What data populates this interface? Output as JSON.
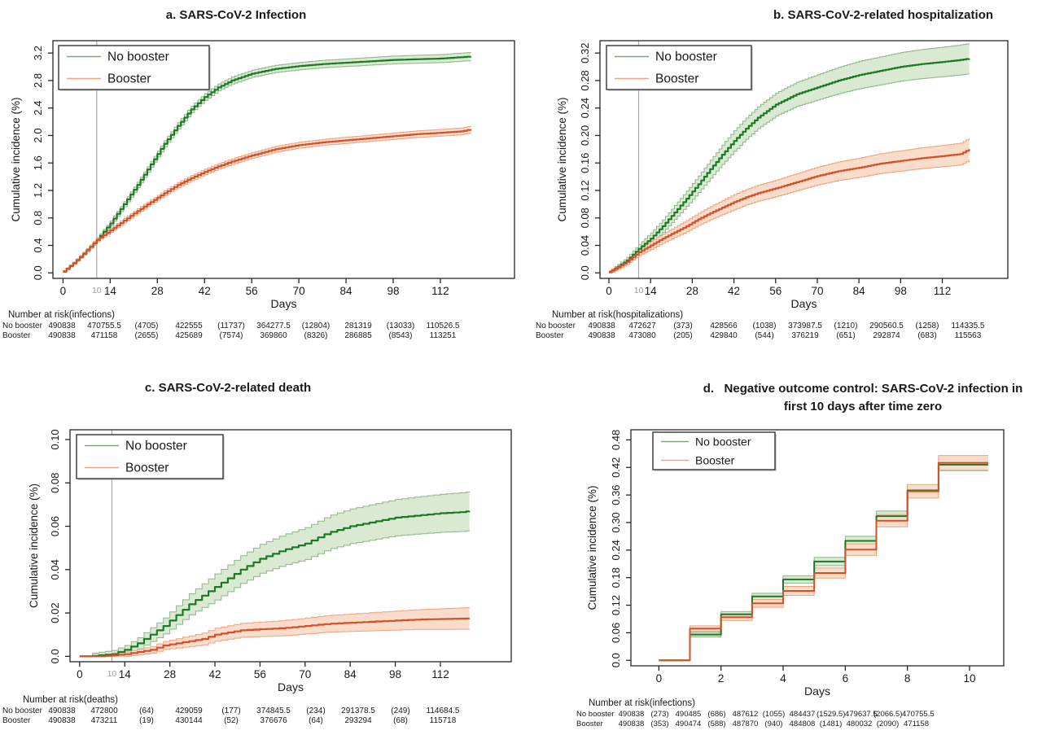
{
  "figure_legend": {
    "no_booster": "No booster",
    "booster": "Booster"
  },
  "colors": {
    "green_line": "#1d7a24",
    "green_band": "#d9e9d2",
    "green_edge": "#8fb58a",
    "green_legend": "#7ea87c",
    "orange_line": "#d2512a",
    "orange_band": "#f9dcca",
    "orange_edge": "#eca380",
    "orange_legend": "#f0a584",
    "ref_line": "#a9a9a9",
    "ref_label": "#9a9a9a",
    "axis": "#262626",
    "text": "#1a1a1a"
  },
  "chart_data": [
    {
      "id": "a",
      "type": "line",
      "title": "a. SARS-CoV-2 Infection",
      "title_line2": "",
      "xlabel": "Days",
      "ylabel": "Cumulative incidence (%)",
      "xlim": [
        -3,
        134
      ],
      "ylim": [
        -0.08,
        3.38
      ],
      "xticks": [
        0,
        14,
        28,
        42,
        56,
        70,
        84,
        98,
        112
      ],
      "yticks": [
        0,
        0.4,
        0.8,
        1.2,
        1.6,
        2.0,
        2.4,
        2.8,
        3.2
      ],
      "ytick_labels": [
        "0.0",
        "0.4",
        "0.8",
        "1.2",
        "1.6",
        "2.0",
        "2.4",
        "2.8",
        "3.2"
      ],
      "ref_x": 10,
      "ref_label": "10",
      "step_dx": 1,
      "legend_labels": [
        "No booster",
        "Booster"
      ],
      "legend_position": "top-left",
      "series": [
        {
          "name": "No booster",
          "color_key": "green",
          "x": [
            0,
            3,
            6,
            10,
            14,
            18,
            22,
            26,
            30,
            34,
            38,
            42,
            46,
            50,
            56,
            63,
            70,
            77,
            84,
            91,
            98,
            105,
            112,
            118,
            121
          ],
          "y": [
            0.02,
            0.14,
            0.28,
            0.48,
            0.72,
            1.0,
            1.28,
            1.58,
            1.88,
            2.14,
            2.38,
            2.56,
            2.7,
            2.8,
            2.9,
            2.97,
            3.01,
            3.04,
            3.06,
            3.08,
            3.1,
            3.11,
            3.12,
            3.14,
            3.15
          ],
          "band": {
            "x": [
              0,
              14,
              42,
              84,
              121
            ],
            "w": [
              0.012,
              0.035,
              0.05,
              0.055,
              0.06
            ]
          }
        },
        {
          "name": "Booster",
          "color_key": "orange",
          "x": [
            0,
            3,
            6,
            10,
            14,
            18,
            22,
            26,
            30,
            34,
            38,
            42,
            46,
            50,
            56,
            63,
            70,
            77,
            84,
            91,
            98,
            105,
            112,
            118,
            121
          ],
          "y": [
            0.02,
            0.14,
            0.28,
            0.48,
            0.62,
            0.76,
            0.9,
            1.03,
            1.16,
            1.28,
            1.38,
            1.47,
            1.55,
            1.62,
            1.71,
            1.8,
            1.86,
            1.9,
            1.93,
            1.96,
            1.99,
            2.02,
            2.04,
            2.06,
            2.09
          ],
          "band": {
            "x": [
              0,
              14,
              42,
              84,
              121
            ],
            "w": [
              0.012,
              0.03,
              0.04,
              0.045,
              0.05
            ]
          }
        }
      ],
      "risk": {
        "label": "Number at risk(infections)",
        "rows": [
          {
            "name": "No booster",
            "values": [
              "490838",
              "470755.5",
              "(4705)",
              "422555",
              "(11737)",
              "364277.5",
              "(12804)",
              "281319",
              "(13033)",
              "110526.5"
            ]
          },
          {
            "name": "Booster",
            "values": [
              "490838",
              "471158",
              "(2655)",
              "425689",
              "(7574)",
              "369860",
              "(8326)",
              "286885",
              "(8543)",
              "113251"
            ]
          }
        ]
      }
    },
    {
      "id": "b",
      "type": "line",
      "title": "b. SARS-CoV-2-related hospitalization",
      "title_line2": "",
      "xlabel": "Days",
      "ylabel": "Cumulative incidence (%)",
      "xlim": [
        -3,
        134
      ],
      "ylim": [
        -0.008,
        0.338
      ],
      "xticks": [
        0,
        14,
        28,
        42,
        56,
        70,
        84,
        98,
        112
      ],
      "yticks": [
        0,
        0.04,
        0.08,
        0.12,
        0.16,
        0.2,
        0.24,
        0.28,
        0.32
      ],
      "ytick_labels": [
        "0.0",
        "0.04",
        "0.08",
        "0.12",
        "0.16",
        "0.20",
        "0.24",
        "0.28",
        "0.32"
      ],
      "ref_x": 10,
      "ref_label": "10",
      "step_dx": 1,
      "legend_labels": [
        "No booster",
        "Booster"
      ],
      "legend_position": "top-left",
      "series": [
        {
          "name": "No booster",
          "color_key": "green",
          "x": [
            0,
            3,
            6,
            10,
            14,
            18,
            22,
            26,
            30,
            34,
            38,
            42,
            46,
            50,
            56,
            63,
            70,
            77,
            84,
            91,
            98,
            105,
            112,
            118,
            121
          ],
          "y": [
            0.001,
            0.009,
            0.018,
            0.035,
            0.05,
            0.068,
            0.088,
            0.108,
            0.129,
            0.151,
            0.172,
            0.192,
            0.21,
            0.226,
            0.245,
            0.26,
            0.27,
            0.28,
            0.288,
            0.294,
            0.3,
            0.304,
            0.307,
            0.31,
            0.312
          ],
          "band": {
            "x": [
              0,
              14,
              42,
              84,
              121
            ],
            "w": [
              0.002,
              0.008,
              0.015,
              0.02,
              0.022
            ]
          }
        },
        {
          "name": "Booster",
          "color_key": "orange",
          "x": [
            0,
            3,
            6,
            10,
            14,
            18,
            22,
            26,
            30,
            34,
            38,
            42,
            46,
            50,
            56,
            63,
            70,
            77,
            84,
            91,
            98,
            105,
            112,
            118,
            121
          ],
          "y": [
            0.001,
            0.008,
            0.016,
            0.03,
            0.04,
            0.05,
            0.059,
            0.068,
            0.078,
            0.087,
            0.095,
            0.103,
            0.11,
            0.116,
            0.123,
            0.132,
            0.141,
            0.148,
            0.153,
            0.159,
            0.163,
            0.167,
            0.17,
            0.173,
            0.18
          ],
          "band": {
            "x": [
              0,
              14,
              42,
              84,
              121
            ],
            "w": [
              0.002,
              0.006,
              0.011,
              0.014,
              0.016
            ]
          }
        }
      ],
      "risk": {
        "label": "Number at risk(hospitalizations)",
        "rows": [
          {
            "name": "No booster",
            "values": [
              "490838",
              "472627",
              "(373)",
              "428566",
              "(1038)",
              "373987.5",
              "(1210)",
              "290560.5",
              "(1258)",
              "114335.5"
            ]
          },
          {
            "name": "Booster",
            "values": [
              "490838",
              "473080",
              "(205)",
              "429840",
              "(544)",
              "376219",
              "(651)",
              "292874",
              "(683)",
              "115563"
            ]
          }
        ]
      }
    },
    {
      "id": "c",
      "type": "line",
      "title": "c. SARS-CoV-2-related death",
      "title_line2": "",
      "xlabel": "Days",
      "ylabel": "Cumulative incidence (%)",
      "xlim": [
        -3,
        134
      ],
      "ylim": [
        -0.0025,
        0.1045
      ],
      "xticks": [
        0,
        14,
        28,
        42,
        56,
        70,
        84,
        98,
        112
      ],
      "yticks": [
        0,
        0.02,
        0.04,
        0.06,
        0.08,
        0.1
      ],
      "ytick_labels": [
        "0.0",
        "0.02",
        "0.04",
        "0.06",
        "0.08",
        "0.10"
      ],
      "ref_x": 10,
      "ref_label": "10",
      "step_dx": 2,
      "legend_labels": [
        "No booster",
        "Booster"
      ],
      "legend_position": "top-left",
      "series": [
        {
          "name": "No booster",
          "color_key": "green",
          "x": [
            0,
            3,
            6,
            10,
            14,
            18,
            22,
            26,
            30,
            34,
            38,
            42,
            46,
            50,
            56,
            63,
            70,
            77,
            84,
            91,
            98,
            105,
            112,
            118,
            121
          ],
          "y": [
            0,
            0,
            0.0005,
            0.001,
            0.003,
            0.006,
            0.01,
            0.014,
            0.019,
            0.024,
            0.028,
            0.032,
            0.036,
            0.04,
            0.045,
            0.049,
            0.052,
            0.057,
            0.06,
            0.062,
            0.064,
            0.065,
            0.066,
            0.0665,
            0.067
          ],
          "band": {
            "x": [
              0,
              14,
              42,
              84,
              121
            ],
            "w": [
              0.001,
              0.002,
              0.006,
              0.008,
              0.009
            ]
          }
        },
        {
          "name": "Booster",
          "color_key": "orange",
          "x": [
            0,
            3,
            6,
            10,
            14,
            18,
            22,
            26,
            30,
            34,
            38,
            42,
            46,
            50,
            56,
            63,
            70,
            77,
            84,
            91,
            98,
            105,
            112,
            118,
            121
          ],
          "y": [
            0,
            0,
            0,
            0.0005,
            0.001,
            0.002,
            0.003,
            0.005,
            0.006,
            0.007,
            0.008,
            0.01,
            0.011,
            0.012,
            0.0125,
            0.013,
            0.014,
            0.015,
            0.0155,
            0.016,
            0.0165,
            0.017,
            0.0172,
            0.0174,
            0.0175
          ],
          "band": {
            "x": [
              0,
              14,
              42,
              84,
              121
            ],
            "w": [
              0.0005,
              0.001,
              0.003,
              0.004,
              0.005
            ]
          }
        }
      ],
      "risk": {
        "label": "Number at risk(deaths)",
        "rows": [
          {
            "name": "No booster",
            "values": [
              "490838",
              "472800",
              "(64)",
              "429059",
              "(177)",
              "374845.5",
              "(234)",
              "291378.5",
              "(249)",
              "114684.5"
            ]
          },
          {
            "name": "Booster",
            "values": [
              "490838",
              "473211",
              "(19)",
              "430144",
              "(52)",
              "376676",
              "(64)",
              "293294",
              "(68)",
              "115718"
            ]
          }
        ]
      }
    },
    {
      "id": "d",
      "type": "line",
      "title": "d.   Negative outcome control: SARS-CoV-2 infection in",
      "title_line2": "first 10 days after time zero",
      "xlabel": "Days",
      "ylabel": "Cumulative incidence (%)",
      "xlim": [
        -0.9,
        11.1
      ],
      "ylim": [
        -0.012,
        0.502
      ],
      "xticks": [
        0,
        2,
        4,
        6,
        8,
        10
      ],
      "yticks": [
        0,
        0.06,
        0.12,
        0.18,
        0.24,
        0.3,
        0.36,
        0.42,
        0.48
      ],
      "ytick_labels": [
        "0.0",
        "0.06",
        "0.12",
        "0.18",
        "0.24",
        "0.30",
        "0.36",
        "0.42",
        "0.48"
      ],
      "ref_x": null,
      "ref_label": "",
      "step_dx": null,
      "legend_labels": [
        "No booster",
        "Booster"
      ],
      "legend_position": "top-left",
      "series": [
        {
          "name": "No booster",
          "color_key": "green",
          "x": [
            0,
            1,
            2,
            3,
            4,
            5,
            6,
            7,
            8,
            9,
            10.6
          ],
          "y": [
            0,
            0.056,
            0.1,
            0.139,
            0.176,
            0.215,
            0.26,
            0.314,
            0.37,
            0.426,
            0.426
          ],
          "band": {
            "x": [
              1,
              5,
              9
            ],
            "w": [
              0.005,
              0.009,
              0.013
            ]
          }
        },
        {
          "name": "Booster",
          "color_key": "orange",
          "x": [
            0,
            1,
            2,
            3,
            4,
            5,
            6,
            7,
            8,
            9,
            10.6
          ],
          "y": [
            0,
            0.069,
            0.094,
            0.124,
            0.151,
            0.19,
            0.241,
            0.304,
            0.368,
            0.43,
            0.43
          ],
          "band": {
            "x": [
              1,
              5,
              9
            ],
            "w": [
              0.006,
              0.011,
              0.016
            ]
          }
        }
      ],
      "risk": {
        "label": "Number at risk(infections)",
        "rows": [
          {
            "name": "No booster",
            "values": [
              "490838",
              "(273)",
              "490485",
              "(686)",
              "487612",
              "(1055)",
              "484437",
              "(1529.5)",
              "479637.5",
              "(2066.5)",
              "470755.5"
            ]
          },
          {
            "name": "Booster",
            "values": [
              "490838",
              "(353)",
              "490474",
              "(588)",
              "487870",
              "(940)",
              "484808",
              "(1481)",
              "480032",
              "(2090)",
              "471158"
            ]
          }
        ]
      }
    }
  ]
}
